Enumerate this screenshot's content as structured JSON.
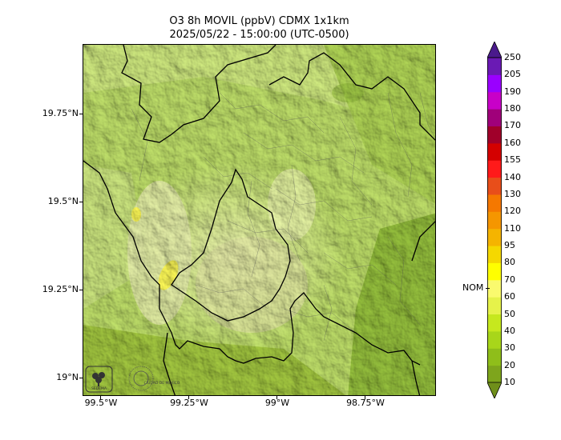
{
  "title": {
    "line1": "O3 8h MOVIL (ppbV) CDMX 1x1km",
    "line2": "2025/05/22 - 15:00:00 (UTC-0500)"
  },
  "map": {
    "lat_ticks": [
      "19.75°N",
      "19.5°N",
      "19.25°N",
      "19°N"
    ],
    "lon_ticks": [
      "99.5°W",
      "99.25°W",
      "99°W",
      "98.75°W"
    ],
    "logos": [
      "SEDEMA",
      "CIUDAD DE MÉXICO"
    ]
  },
  "colorbar": {
    "levels": [
      "10",
      "20",
      "30",
      "40",
      "50",
      "60",
      "70",
      "80",
      "95",
      "110",
      "120",
      "130",
      "140",
      "155",
      "160",
      "170",
      "180",
      "190",
      "205",
      "250"
    ],
    "colors": [
      "#6f8f1a",
      "#7ea51c",
      "#8fbe1a",
      "#a8d61a",
      "#c6e81e",
      "#e6f24a",
      "#fafa6e",
      "#ffff00",
      "#f5d800",
      "#f5b400",
      "#f59600",
      "#f57800",
      "#e84e1a",
      "#ff1a1a",
      "#d40000",
      "#a0002a",
      "#a0007a",
      "#c800c8",
      "#9a00ff",
      "#6a1ab4",
      "#4a1a8c"
    ],
    "reference_label": "NOM",
    "reference_value": 65
  }
}
